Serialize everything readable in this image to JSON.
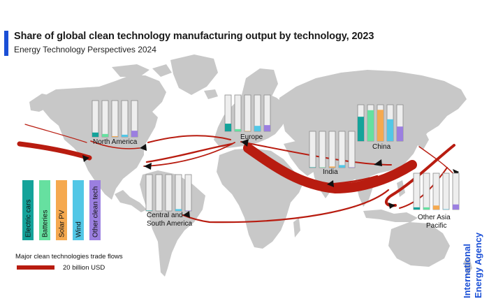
{
  "header": {
    "title": "Share of global clean technology manufacturing output by technology, 2023",
    "subtitle": "Energy Technology Perspectives 2024"
  },
  "brand": {
    "line1": "International",
    "line2": "Energy Agency",
    "color": "#1a4fd6"
  },
  "colors": {
    "map_land": "#c8c8c8",
    "bar_background": "#eeeeee",
    "bar_outline": "#8a8a8a",
    "flow": "#b81c10"
  },
  "chart_data": {
    "type": "bar",
    "title": "Share of global clean technology manufacturing output by technology, 2023",
    "subtitle": "Energy Technology Perspectives 2024",
    "unit": "share of global output (%)",
    "ylim": [
      0,
      100
    ],
    "technologies": [
      {
        "name": "Electric cars",
        "color": "#14a39a"
      },
      {
        "name": "Batteries",
        "color": "#66e0a0"
      },
      {
        "name": "Solar PV",
        "color": "#f5a94f"
      },
      {
        "name": "Wind",
        "color": "#52c7e6"
      },
      {
        "name": "Other clean tech",
        "color": "#9b7fe0"
      }
    ],
    "regions": [
      {
        "name": "North America",
        "values": [
          12,
          8,
          2,
          6,
          17
        ]
      },
      {
        "name": "Europe",
        "values": [
          21,
          6,
          1,
          15,
          17
        ]
      },
      {
        "name": "China",
        "values": [
          67,
          85,
          86,
          60,
          40
        ]
      },
      {
        "name": "India",
        "values": [
          1,
          1,
          3,
          7,
          1
        ]
      },
      {
        "name": "Central and South America",
        "values": [
          1,
          0,
          0,
          5,
          1
        ]
      },
      {
        "name": "Other Asia Pacific",
        "values": [
          6,
          6,
          11,
          1,
          14
        ]
      }
    ],
    "legend_title": "Major clean technologies trade flows",
    "flow_scale_label": "20 billion USD"
  }
}
